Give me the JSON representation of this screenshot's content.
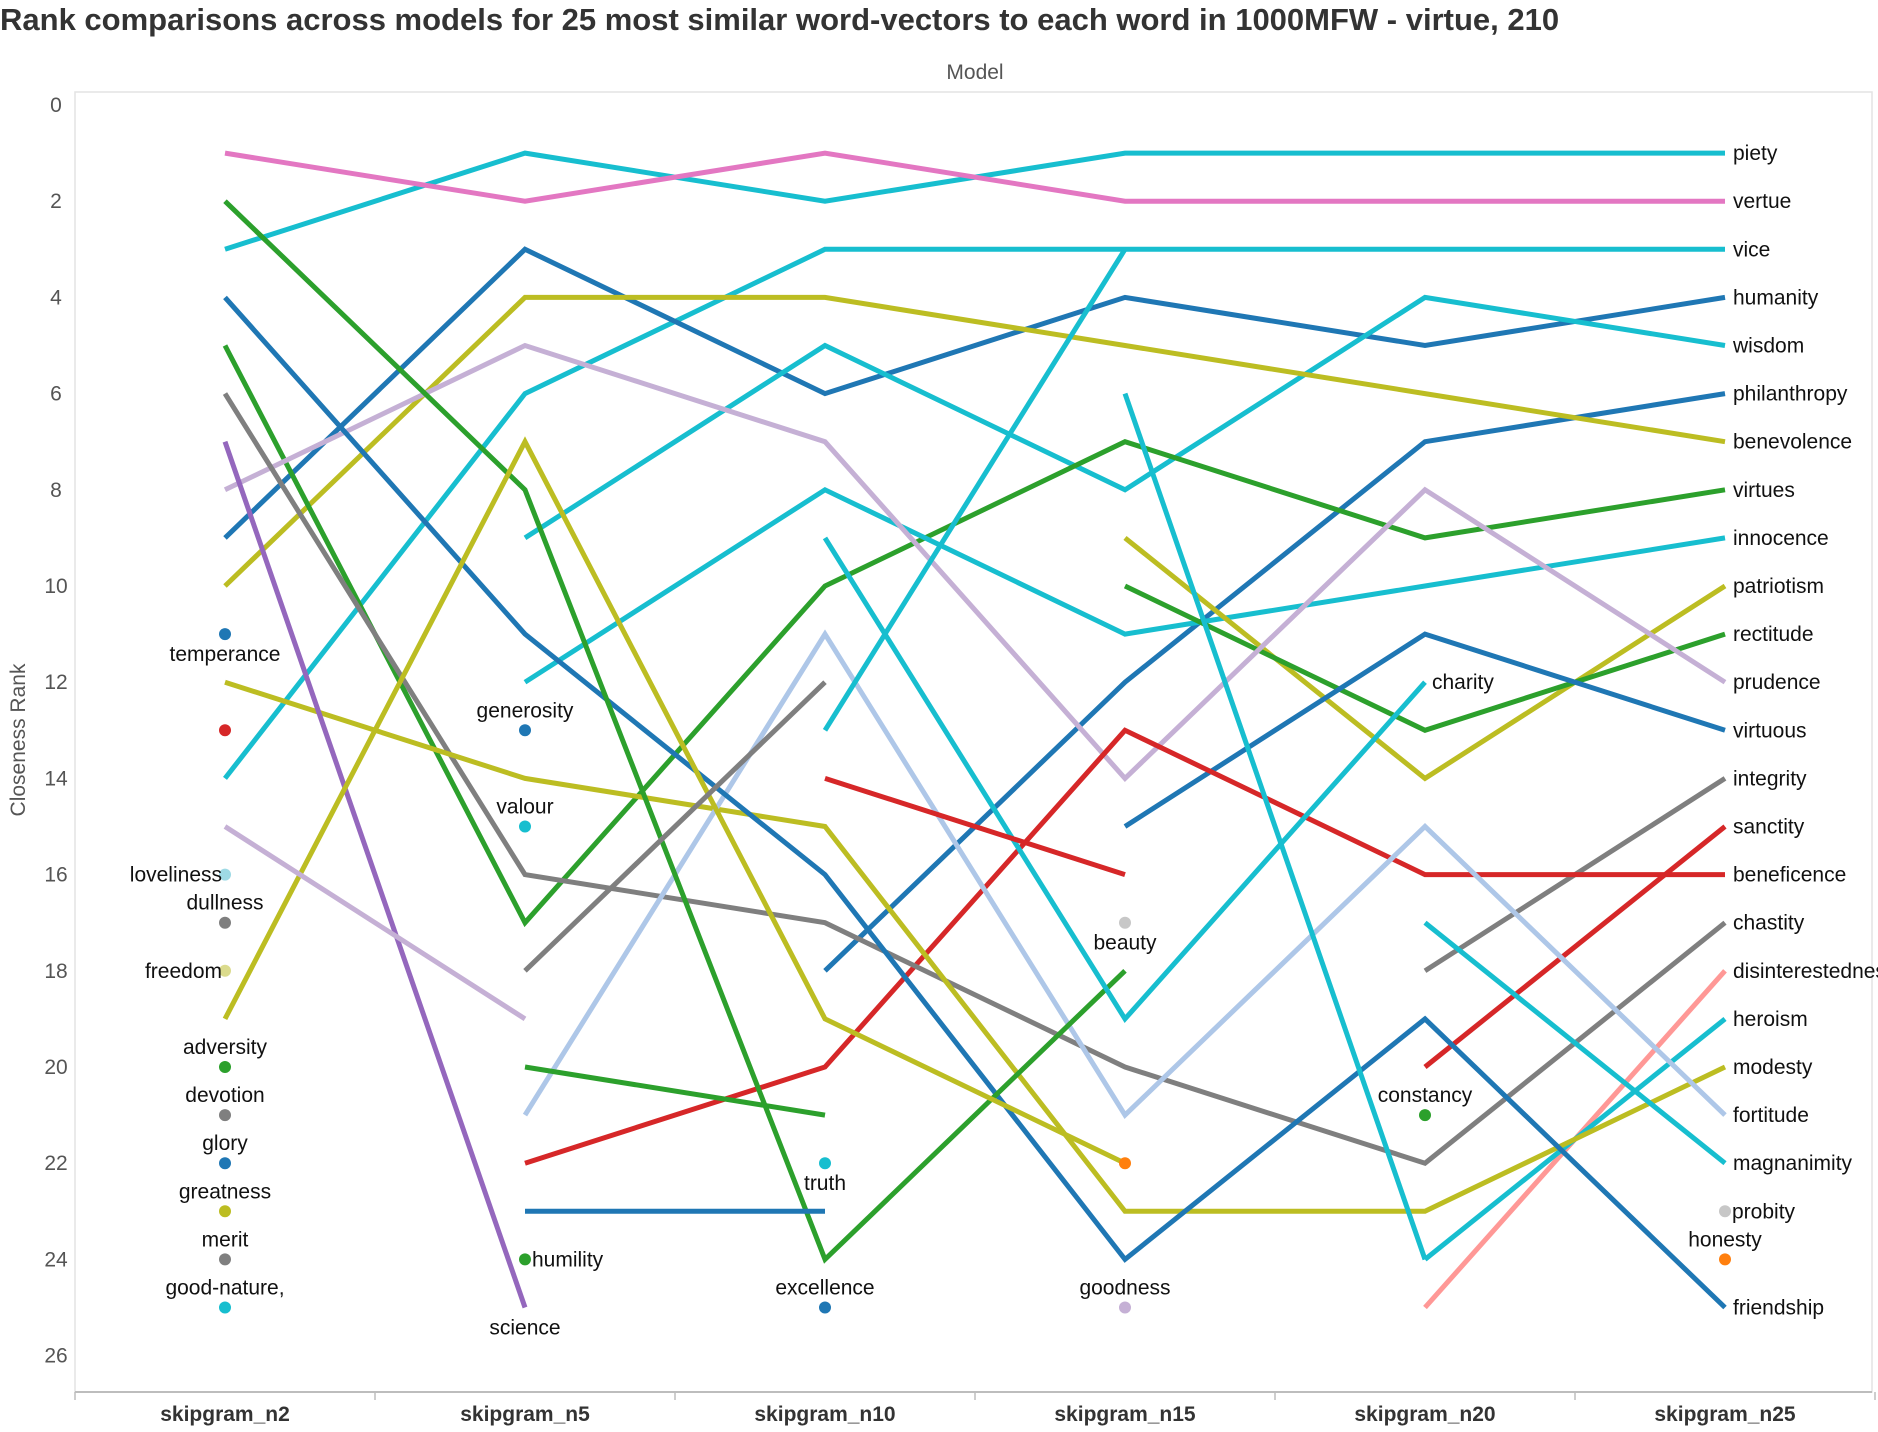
{
  "title": "Rank comparisons across models for 25 most similar word-vectors to each word in 1000MFW - virtue, 210",
  "chart_data": {
    "type": "line",
    "title": "Rank comparisons across models for 25 most similar word-vectors to each word in 1000MFW - virtue, 210",
    "xlabel": "Model",
    "ylabel": "Closeness Rank",
    "categories": [
      "skipgram_n2",
      "skipgram_n5",
      "skipgram_n10",
      "skipgram_n15",
      "skipgram_n20",
      "skipgram_n25"
    ],
    "y_ticks": [
      "0",
      "2",
      "4",
      "6",
      "8",
      "10",
      "12",
      "14",
      "16",
      "18",
      "20",
      "22",
      "24",
      "26"
    ],
    "ylim": [
      0,
      27
    ],
    "y_reversed": true,
    "grid": false,
    "series": [
      {
        "name": "piety",
        "color": "#17becf",
        "values": [
          3,
          1,
          2,
          1,
          1,
          1
        ]
      },
      {
        "name": "vertue",
        "color": "#e377c2",
        "values": [
          1,
          2,
          1,
          2,
          2,
          2
        ]
      },
      {
        "name": "vice",
        "color": "#17becf",
        "values": [
          14,
          6,
          3,
          3,
          3,
          3
        ]
      },
      {
        "name": "humanity",
        "color": "#1f77b4",
        "values": [
          9,
          3,
          6,
          4,
          5,
          4
        ]
      },
      {
        "name": "wisdom",
        "color": "#17becf",
        "values": [
          null,
          9,
          5,
          8,
          4,
          5
        ]
      },
      {
        "name": "philanthropy",
        "color": "#1f77b4",
        "values": [
          null,
          null,
          18,
          12,
          7,
          6
        ]
      },
      {
        "name": "benevolence",
        "color": "#bcbd22",
        "values": [
          10,
          4,
          4,
          5,
          6,
          7
        ]
      },
      {
        "name": "virtues",
        "color": "#2ca02c",
        "values": [
          5,
          17,
          10,
          7,
          9,
          8
        ]
      },
      {
        "name": "innocence",
        "color": "#17becf",
        "values": [
          null,
          12,
          8,
          11,
          10,
          9
        ]
      },
      {
        "name": "patriotism",
        "color": "#bcbd22",
        "values": [
          null,
          null,
          null,
          9,
          14,
          10
        ]
      },
      {
        "name": "rectitude",
        "color": "#2ca02c",
        "values": [
          null,
          null,
          null,
          10,
          13,
          11
        ]
      },
      {
        "name": "prudence",
        "color": "#c5b0d5",
        "values": [
          8,
          5,
          7,
          14,
          8,
          12
        ]
      },
      {
        "name": "virtuous",
        "color": "#1f77b4",
        "values": [
          null,
          null,
          null,
          15,
          11,
          13
        ]
      },
      {
        "name": "integrity",
        "color": "#7f7f7f",
        "values": [
          null,
          null,
          null,
          null,
          18,
          14
        ]
      },
      {
        "name": "sanctity",
        "color": "#d62728",
        "values": [
          null,
          null,
          null,
          null,
          20,
          15
        ]
      },
      {
        "name": "beneficence",
        "color": "#d62728",
        "values": [
          null,
          22,
          20,
          13,
          16,
          16
        ]
      },
      {
        "name": "chastity",
        "color": "#7f7f7f",
        "values": [
          6,
          16,
          17,
          20,
          22,
          17
        ]
      },
      {
        "name": "disinterestedness",
        "color": "#ff9896",
        "values": [
          null,
          null,
          null,
          null,
          25,
          18
        ]
      },
      {
        "name": "heroism",
        "color": "#17becf",
        "values": [
          null,
          null,
          null,
          null,
          24,
          19
        ]
      },
      {
        "name": "modesty",
        "color": "#bcbd22",
        "values": [
          12,
          14,
          15,
          23,
          23,
          20
        ]
      },
      {
        "name": "fortitude",
        "color": "#aec7e8",
        "values": [
          null,
          21,
          11,
          21,
          15,
          21
        ]
      },
      {
        "name": "magnanimity",
        "color": "#17becf",
        "values": [
          null,
          null,
          null,
          null,
          17,
          22
        ]
      },
      {
        "name": "friendship",
        "color": "#1f77b4",
        "values": [
          4,
          11,
          16,
          24,
          19,
          25
        ]
      },
      {
        "name": "",
        "color": "#9467bd",
        "values": [
          7,
          25,
          null,
          null,
          null,
          null
        ]
      },
      {
        "name": "",
        "color": "#2ca02c",
        "values": [
          2,
          8,
          24,
          18,
          null,
          null
        ]
      },
      {
        "name": "",
        "color": "#bcbd22",
        "values": [
          19,
          7,
          19,
          22,
          null,
          null
        ]
      },
      {
        "name": "",
        "color": "#c5b0d5",
        "values": [
          15,
          19,
          null,
          null,
          null,
          null
        ]
      },
      {
        "name": "",
        "color": "#7f7f7f",
        "values": [
          null,
          18,
          12,
          null,
          null,
          null
        ]
      },
      {
        "name": "",
        "color": "#17becf",
        "values": [
          null,
          10,
          null,
          null,
          null,
          null
        ]
      },
      {
        "name": "",
        "color": "#17becf",
        "values": [
          null,
          null,
          13,
          3,
          null,
          null
        ]
      },
      {
        "name": "",
        "color": "#17becf",
        "values": [
          null,
          null,
          9,
          19,
          12,
          null
        ]
      },
      {
        "name": "",
        "color": "#17becf",
        "values": [
          null,
          null,
          null,
          6,
          24,
          null
        ]
      },
      {
        "name": "",
        "color": "#2ca02c",
        "values": [
          null,
          20,
          21,
          null,
          null,
          null
        ]
      },
      {
        "name": "",
        "color": "#1f77b4",
        "values": [
          null,
          23,
          23,
          null,
          null,
          null
        ]
      },
      {
        "name": "",
        "color": "#d62728",
        "values": [
          null,
          null,
          14,
          16,
          null,
          null
        ]
      }
    ],
    "point_labels": [
      {
        "text": "temperance",
        "color": "#1f77b4",
        "x": "skipgram_n2",
        "y": 11,
        "pos": "below"
      },
      {
        "text": "",
        "color": "#d62728",
        "x": "skipgram_n2",
        "y": 13,
        "pos": "below"
      },
      {
        "text": "loveliness",
        "color": "#9edae5",
        "x": "skipgram_n2",
        "y": 16,
        "pos": "left"
      },
      {
        "text": "dullness",
        "color": "#7f7f7f",
        "x": "skipgram_n2",
        "y": 17,
        "pos": "above"
      },
      {
        "text": "freedom",
        "color": "#dbdb8d",
        "x": "skipgram_n2",
        "y": 18,
        "pos": "left"
      },
      {
        "text": "adversity",
        "color": "#2ca02c",
        "x": "skipgram_n2",
        "y": 20,
        "pos": "above"
      },
      {
        "text": "devotion",
        "color": "#7f7f7f",
        "x": "skipgram_n2",
        "y": 21,
        "pos": "above"
      },
      {
        "text": "glory",
        "color": "#1f77b4",
        "x": "skipgram_n2",
        "y": 22,
        "pos": "above"
      },
      {
        "text": "greatness",
        "color": "#bcbd22",
        "x": "skipgram_n2",
        "y": 23,
        "pos": "above"
      },
      {
        "text": "merit",
        "color": "#7f7f7f",
        "x": "skipgram_n2",
        "y": 24,
        "pos": "above"
      },
      {
        "text": "good-nature,",
        "color": "#17becf",
        "x": "skipgram_n2",
        "y": 25,
        "pos": "above"
      },
      {
        "text": "generosity",
        "color": "#1f77b4",
        "x": "skipgram_n5",
        "y": 13,
        "pos": "above"
      },
      {
        "text": "valour",
        "color": "#17becf",
        "x": "skipgram_n5",
        "y": 15,
        "pos": "above"
      },
      {
        "text": "humility",
        "color": "#2ca02c",
        "x": "skipgram_n5",
        "y": 24,
        "pos": "right"
      },
      {
        "text": "science",
        "color": "#9467bd",
        "x": "skipgram_n5",
        "y": 25,
        "pos": "below",
        "no_dot": true
      },
      {
        "text": "truth",
        "color": "#17becf",
        "x": "skipgram_n10",
        "y": 22,
        "pos": "below"
      },
      {
        "text": "excellence",
        "color": "#1f77b4",
        "x": "skipgram_n10",
        "y": 25,
        "pos": "above"
      },
      {
        "text": "beauty",
        "color": "#c7c7c7",
        "x": "skipgram_n15",
        "y": 17,
        "pos": "below"
      },
      {
        "text": "",
        "color": "#ff7f0e",
        "x": "skipgram_n15",
        "y": 22,
        "pos": "below"
      },
      {
        "text": "goodness",
        "color": "#c5b0d5",
        "x": "skipgram_n15",
        "y": 25,
        "pos": "above"
      },
      {
        "text": "charity",
        "color": "#17becf",
        "x": "skipgram_n20",
        "y": 12,
        "pos": "right",
        "no_dot": true
      },
      {
        "text": "constancy",
        "color": "#2ca02c",
        "x": "skipgram_n20",
        "y": 21,
        "pos": "above"
      },
      {
        "text": "probity",
        "color": "#c7c7c7",
        "x": "skipgram_n25",
        "y": 23,
        "pos": "right"
      },
      {
        "text": "honesty",
        "color": "#ff7f0e",
        "x": "skipgram_n25",
        "y": 24,
        "pos": "above"
      }
    ]
  }
}
